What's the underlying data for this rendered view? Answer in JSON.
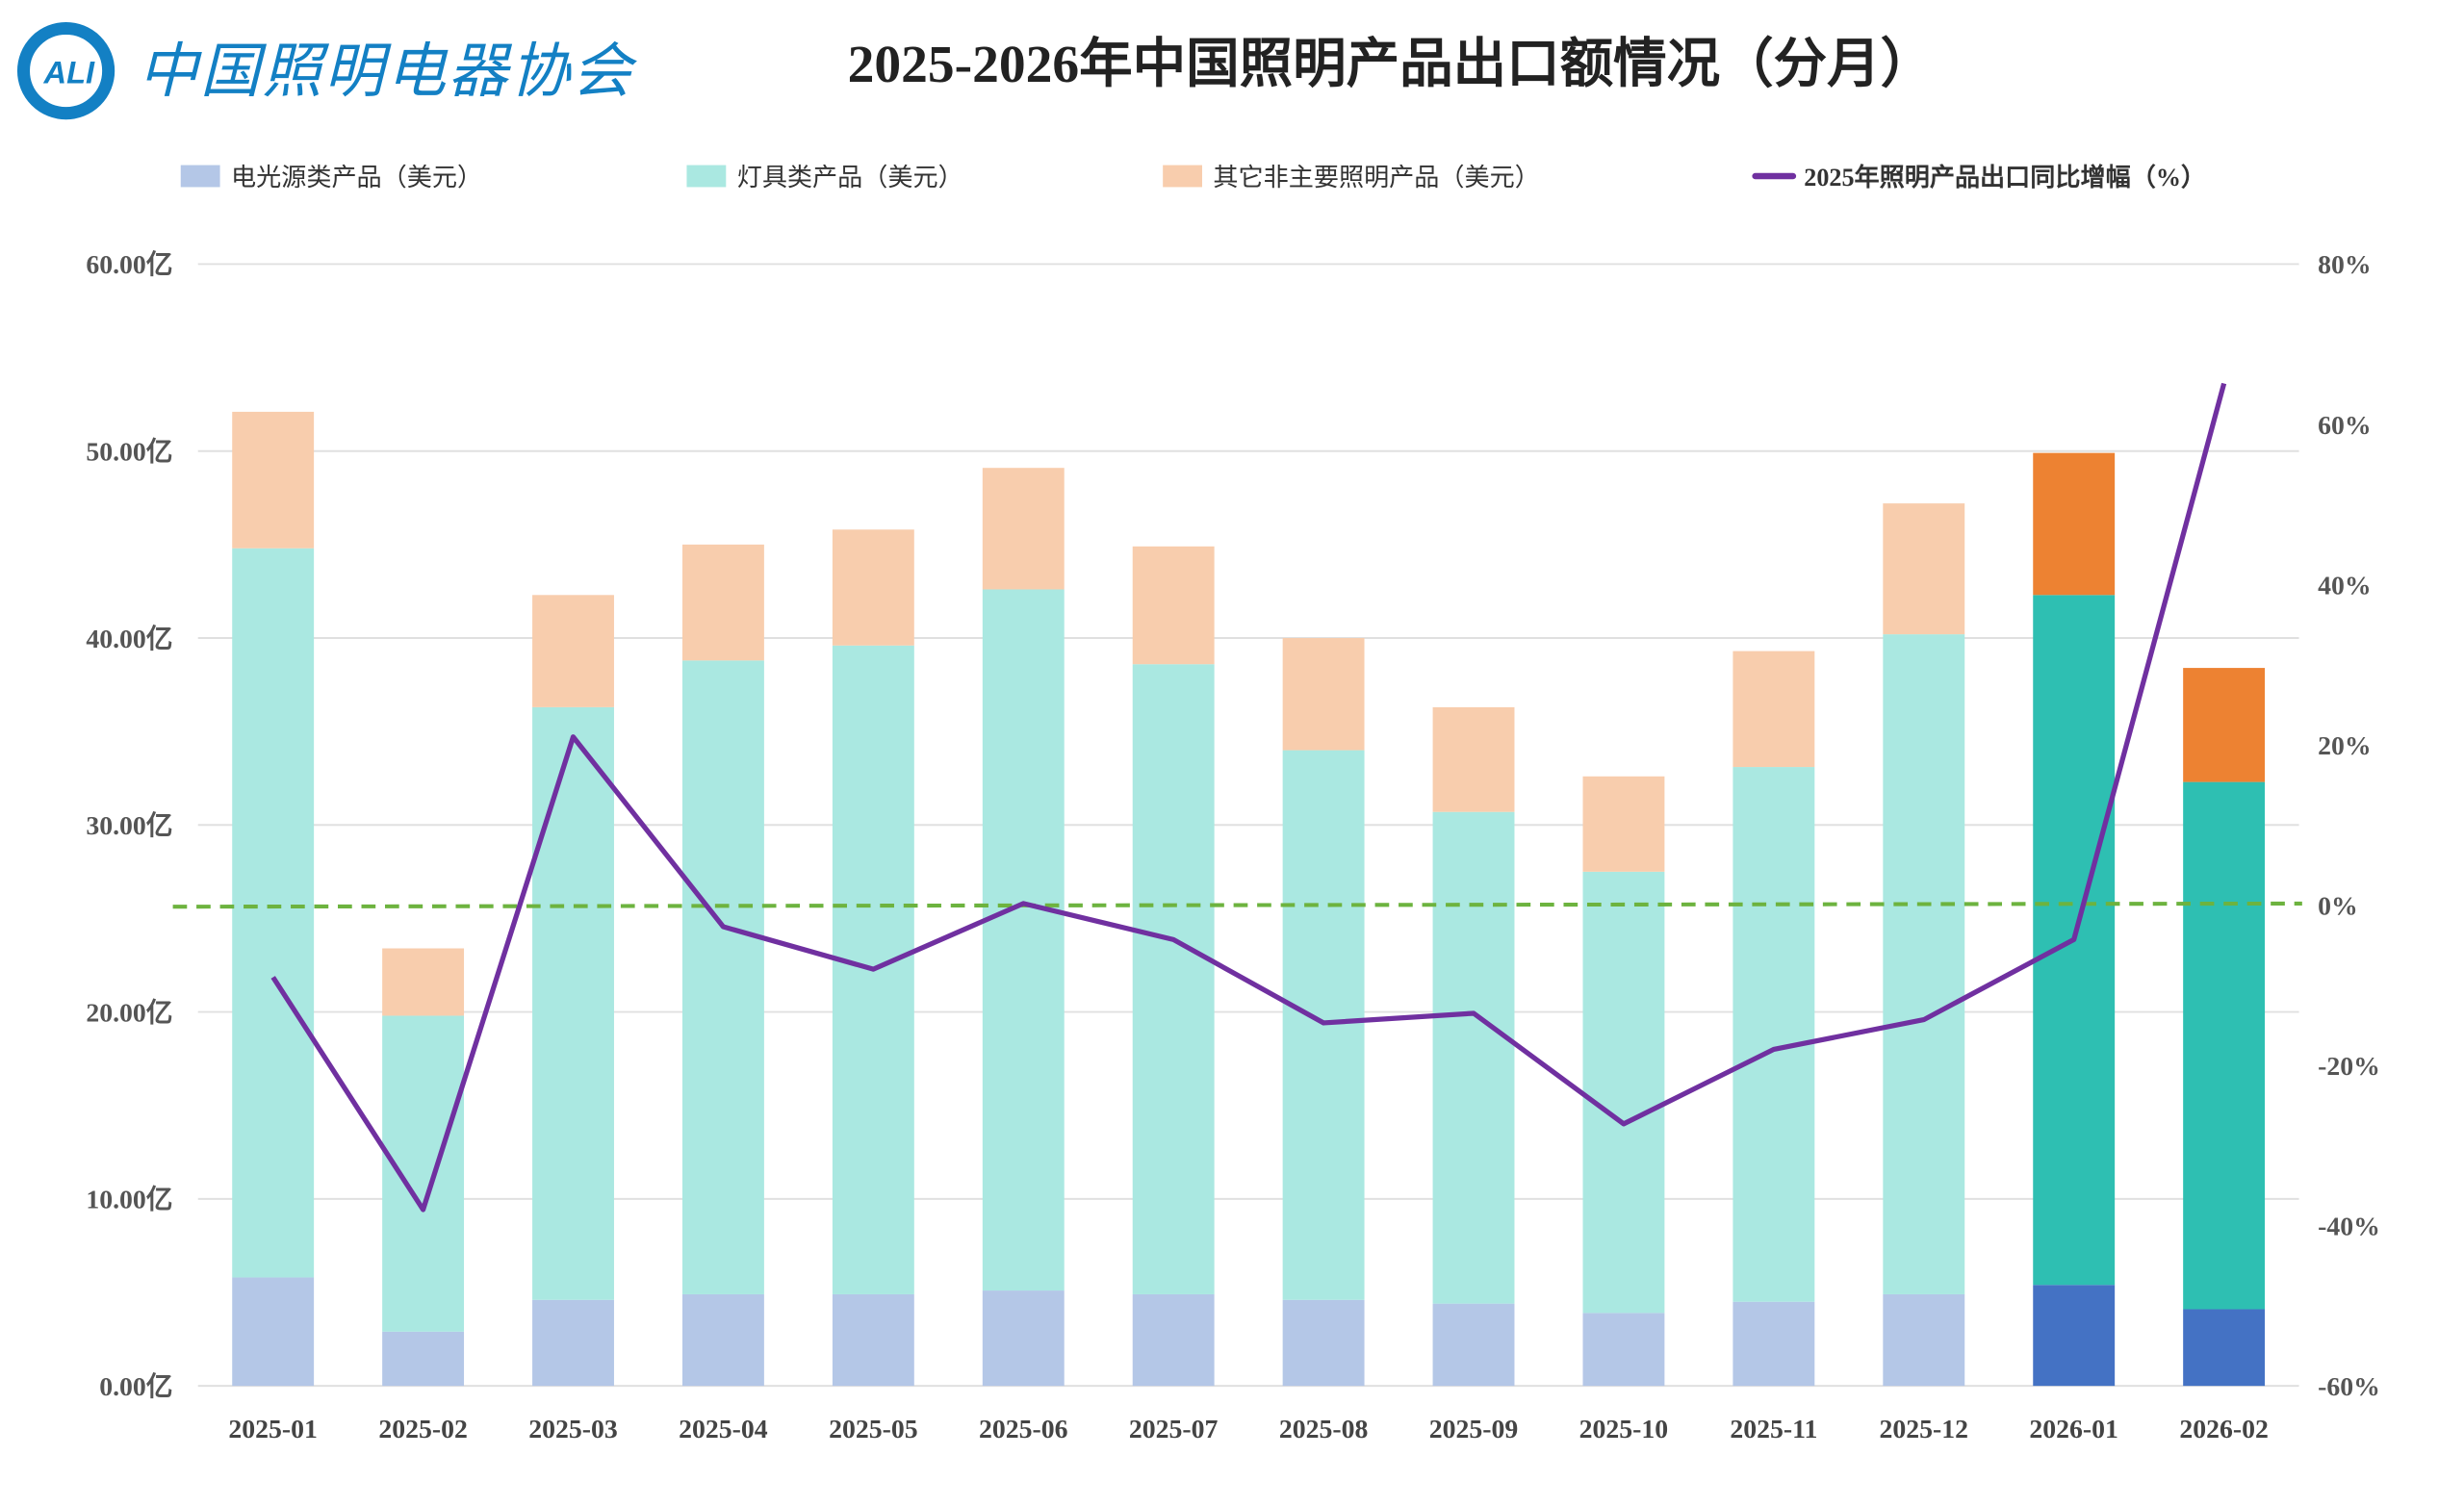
{
  "logo": {
    "mark": "ALI",
    "text": "中国照明电器协会",
    "color": "#1380c4"
  },
  "chart_data": {
    "type": "bar",
    "stacked": true,
    "title": "2025-2026年中国照明产品出口额情况（分月）",
    "categories": [
      "2025-01",
      "2025-02",
      "2025-03",
      "2025-04",
      "2025-05",
      "2025-06",
      "2025-07",
      "2025-08",
      "2025-09",
      "2025-10",
      "2025-11",
      "2025-12",
      "2026-01",
      "2026-02"
    ],
    "y_left": {
      "range": [
        0,
        60
      ],
      "ticks": [
        "0.00亿",
        "10.00亿",
        "20.00亿",
        "30.00亿",
        "40.00亿",
        "50.00亿",
        "60.00亿"
      ]
    },
    "y_right": {
      "range": [
        -60,
        80
      ],
      "ticks": [
        "-60%",
        "-40%",
        "-20%",
        "0%",
        "20%",
        "40%",
        "60%",
        "80%"
      ]
    },
    "grid": true,
    "legend_position": "top",
    "series": [
      {
        "name": "电光源类产品（美元）",
        "kind": "bar",
        "color": "#b4c7e7",
        "highlight_color": "#4472c4",
        "values": [
          5.8,
          2.9,
          4.6,
          4.9,
          4.9,
          5.1,
          4.9,
          4.6,
          4.4,
          3.9,
          4.5,
          4.9,
          5.4,
          4.1
        ]
      },
      {
        "name": "灯具类产品（美元）",
        "kind": "bar",
        "color": "#aae8e1",
        "highlight_color": "#2ebfb2",
        "values": [
          39.0,
          16.9,
          31.7,
          33.9,
          34.7,
          37.5,
          33.7,
          29.4,
          26.3,
          23.6,
          28.6,
          35.3,
          36.9,
          28.2
        ]
      },
      {
        "name": "其它非主要照明产品（美元）",
        "kind": "bar",
        "color": "#f8cdad",
        "highlight_color": "#ed8232",
        "values": [
          7.3,
          3.6,
          6.0,
          6.2,
          6.2,
          6.5,
          6.3,
          6.0,
          5.6,
          5.1,
          6.2,
          7.0,
          7.6,
          6.1
        ]
      },
      {
        "name": "2025年照明产品出口同比增幅（%）",
        "kind": "line",
        "axis": "right",
        "color": "#7030a0",
        "values": [
          -9.0,
          -38.0,
          21.0,
          -2.7,
          -8.0,
          0.2,
          -4.3,
          -14.7,
          -13.5,
          -27.3,
          -18.0,
          -14.3,
          -4.3,
          65.1
        ]
      }
    ],
    "highlighted_categories": [
      "2026-01",
      "2026-02"
    ],
    "reference_line": {
      "axis": "right",
      "value": 0,
      "style": "dashed",
      "color": "#6db33f"
    }
  }
}
